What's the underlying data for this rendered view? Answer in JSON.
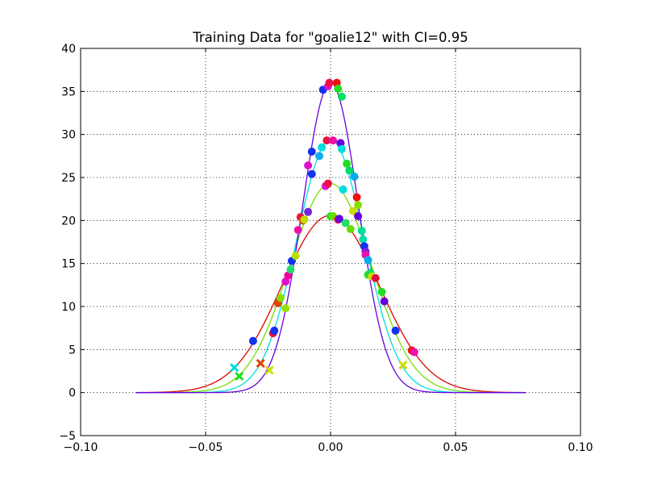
{
  "chart_data": {
    "type": "line",
    "title": "Training Data for \"goalie12\" with CI=0.95",
    "xlabel": "",
    "ylabel": "",
    "xlim": [
      -0.1,
      0.1
    ],
    "ylim": [
      -5,
      40
    ],
    "grid": true,
    "x_ticks": [
      -0.1,
      -0.05,
      0.0,
      0.05,
      0.1
    ],
    "x_tick_labels": [
      "−0.10",
      "−0.05",
      "0.00",
      "0.05",
      "0.10"
    ],
    "y_ticks": [
      -5,
      0,
      5,
      10,
      15,
      20,
      25,
      30,
      35,
      40
    ],
    "y_tick_labels": [
      "−5",
      "0",
      "5",
      "10",
      "15",
      "20",
      "25",
      "30",
      "35",
      "40"
    ],
    "curve_x_range": [
      -0.078,
      0.078
    ],
    "curves": [
      {
        "color": "#dd0000",
        "mean": 0.0,
        "peak": 20.6,
        "sigma": 0.0194
      },
      {
        "color": "#77dd00",
        "mean": 0.0,
        "peak": 24.3,
        "sigma": 0.0164
      },
      {
        "color": "#00dddd",
        "mean": 0.0,
        "peak": 29.4,
        "sigma": 0.0135
      },
      {
        "color": "#6600dd",
        "mean": 0.0,
        "peak": 36.0,
        "sigma": 0.0111
      }
    ],
    "points": [
      {
        "x": -0.031,
        "y": 6.0,
        "c": "#1133ee"
      },
      {
        "x": -0.023,
        "y": 6.9,
        "c": "#dd1144"
      },
      {
        "x": -0.0225,
        "y": 7.2,
        "c": "#1133ee"
      },
      {
        "x": -0.021,
        "y": 10.4,
        "c": "#dd4400"
      },
      {
        "x": -0.02,
        "y": 11.0,
        "c": "#88dd00"
      },
      {
        "x": -0.018,
        "y": 9.8,
        "c": "#99dd00"
      },
      {
        "x": -0.018,
        "y": 12.9,
        "c": "#dd11cc"
      },
      {
        "x": -0.017,
        "y": 13.6,
        "c": "#ee0099"
      },
      {
        "x": -0.016,
        "y": 14.3,
        "c": "#22dd66"
      },
      {
        "x": -0.0155,
        "y": 15.3,
        "c": "#1133ee"
      },
      {
        "x": -0.014,
        "y": 15.9,
        "c": "#bbdd00"
      },
      {
        "x": -0.013,
        "y": 18.9,
        "c": "#ee11aa"
      },
      {
        "x": -0.012,
        "y": 20.4,
        "c": "#ee1144"
      },
      {
        "x": -0.011,
        "y": 20.0,
        "c": "#dd4400"
      },
      {
        "x": -0.0105,
        "y": 20.1,
        "c": "#bbdd00"
      },
      {
        "x": -0.009,
        "y": 21.0,
        "c": "#7722dd"
      },
      {
        "x": -0.009,
        "y": 26.4,
        "c": "#dd11cc"
      },
      {
        "x": -0.0075,
        "y": 25.4,
        "c": "#1133ee"
      },
      {
        "x": -0.0075,
        "y": 28.0,
        "c": "#1133ee"
      },
      {
        "x": -0.0045,
        "y": 27.5,
        "c": "#11aaee"
      },
      {
        "x": -0.0035,
        "y": 28.5,
        "c": "#00dddd"
      },
      {
        "x": -0.003,
        "y": 35.2,
        "c": "#1133ee"
      },
      {
        "x": -0.002,
        "y": 24.0,
        "c": "#dd11cc"
      },
      {
        "x": -0.001,
        "y": 24.3,
        "c": "#ee1144"
      },
      {
        "x": -0.0015,
        "y": 29.3,
        "c": "#ee1144"
      },
      {
        "x": -0.001,
        "y": 35.6,
        "c": "#dd11cc"
      },
      {
        "x": -0.0005,
        "y": 36.0,
        "c": "#ee1144"
      },
      {
        "x": 0.0,
        "y": 20.5,
        "c": "#22dd22"
      },
      {
        "x": 0.001,
        "y": 20.5,
        "c": "#66dd00"
      },
      {
        "x": 0.001,
        "y": 29.3,
        "c": "#ee11aa"
      },
      {
        "x": 0.0025,
        "y": 36.0,
        "c": "#ee1111"
      },
      {
        "x": 0.003,
        "y": 35.3,
        "c": "#22dd22"
      },
      {
        "x": 0.003,
        "y": 20.1,
        "c": "#ee1144"
      },
      {
        "x": 0.0035,
        "y": 20.2,
        "c": "#6600dd"
      },
      {
        "x": 0.004,
        "y": 29.0,
        "c": "#6600dd"
      },
      {
        "x": 0.0045,
        "y": 34.4,
        "c": "#00dd66"
      },
      {
        "x": 0.0045,
        "y": 28.3,
        "c": "#00dddd"
      },
      {
        "x": 0.005,
        "y": 23.6,
        "c": "#00dddd"
      },
      {
        "x": 0.006,
        "y": 19.7,
        "c": "#22dd66"
      },
      {
        "x": 0.0065,
        "y": 26.6,
        "c": "#22dd22"
      },
      {
        "x": 0.0075,
        "y": 25.8,
        "c": "#00dd66"
      },
      {
        "x": 0.008,
        "y": 19.0,
        "c": "#66dd00"
      },
      {
        "x": 0.009,
        "y": 21.1,
        "c": "#ccdd00"
      },
      {
        "x": 0.0095,
        "y": 25.1,
        "c": "#00aaee"
      },
      {
        "x": 0.0105,
        "y": 22.7,
        "c": "#ee1111"
      },
      {
        "x": 0.011,
        "y": 21.8,
        "c": "#88dd00"
      },
      {
        "x": 0.011,
        "y": 20.5,
        "c": "#6600dd"
      },
      {
        "x": 0.0125,
        "y": 18.8,
        "c": "#00dd99"
      },
      {
        "x": 0.013,
        "y": 17.8,
        "c": "#00ddaa"
      },
      {
        "x": 0.0135,
        "y": 17.0,
        "c": "#1133ee"
      },
      {
        "x": 0.014,
        "y": 16.4,
        "c": "#7722dd"
      },
      {
        "x": 0.014,
        "y": 16.0,
        "c": "#ee11aa"
      },
      {
        "x": 0.015,
        "y": 15.4,
        "c": "#00aaee"
      },
      {
        "x": 0.015,
        "y": 13.7,
        "c": "#22dd22"
      },
      {
        "x": 0.016,
        "y": 13.9,
        "c": "#00dd66"
      },
      {
        "x": 0.0165,
        "y": 13.5,
        "c": "#ccdd00"
      },
      {
        "x": 0.018,
        "y": 13.3,
        "c": "#dd1144"
      },
      {
        "x": 0.0205,
        "y": 11.7,
        "c": "#22dd22"
      },
      {
        "x": 0.0215,
        "y": 10.6,
        "c": "#6600dd"
      },
      {
        "x": 0.026,
        "y": 7.2,
        "c": "#1133ee"
      },
      {
        "x": 0.0325,
        "y": 4.9,
        "c": "#ee1111"
      },
      {
        "x": 0.0335,
        "y": 4.7,
        "c": "#ee11aa"
      }
    ],
    "crosses": [
      {
        "x": -0.0385,
        "y": 2.9,
        "c": "#00dddd"
      },
      {
        "x": -0.0365,
        "y": 1.9,
        "c": "#22dd22"
      },
      {
        "x": -0.028,
        "y": 3.4,
        "c": "#dd4400"
      },
      {
        "x": -0.0245,
        "y": 2.6,
        "c": "#ccdd00"
      },
      {
        "x": 0.029,
        "y": 3.2,
        "c": "#ccdd00"
      }
    ]
  }
}
